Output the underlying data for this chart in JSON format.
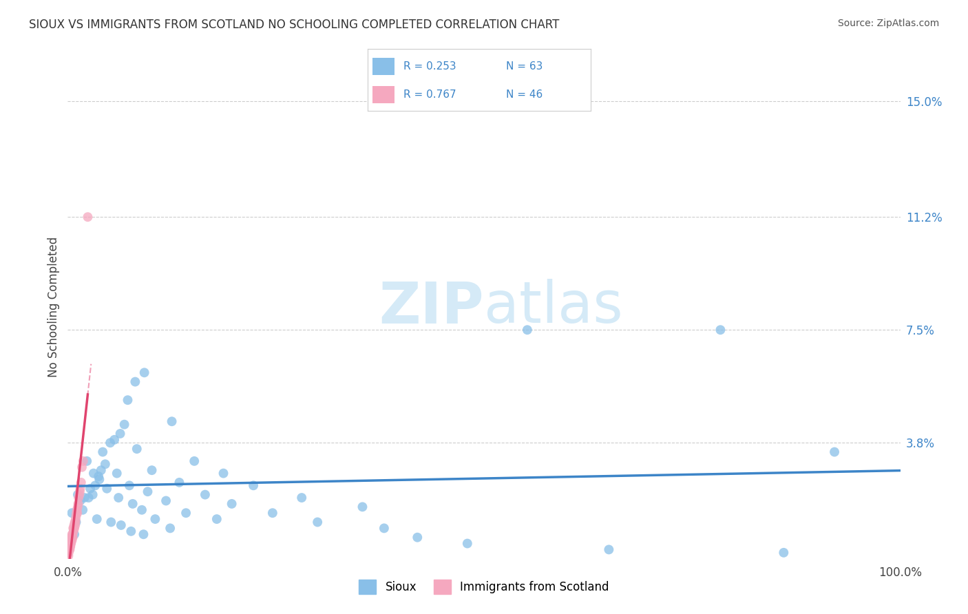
{
  "title": "SIOUX VS IMMIGRANTS FROM SCOTLAND NO SCHOOLING COMPLETED CORRELATION CHART",
  "source": "Source: ZipAtlas.com",
  "ylabel": "No Schooling Completed",
  "xlim": [
    0,
    100
  ],
  "ylim": [
    0,
    16.5
  ],
  "yticks": [
    0,
    3.8,
    7.5,
    11.2,
    15.0
  ],
  "ytick_labels": [
    "",
    "3.8%",
    "7.5%",
    "11.2%",
    "15.0%"
  ],
  "xtick_labels": [
    "0.0%",
    "100.0%"
  ],
  "legend_r1": "R = 0.253",
  "legend_n1": "N = 63",
  "legend_r2": "R = 0.767",
  "legend_n2": "N = 46",
  "blue_color": "#89bfe8",
  "pink_color": "#f5a8bf",
  "blue_line_color": "#3d85c8",
  "pink_line_color": "#e0446e",
  "pink_dash_color": "#f0a0b8",
  "watermark_color": "#d5eaf7",
  "background_color": "#ffffff",
  "grid_color": "#cccccc",
  "sioux_x": [
    0.5,
    0.8,
    1.0,
    1.2,
    1.5,
    1.8,
    2.0,
    2.3,
    2.5,
    2.7,
    3.0,
    3.1,
    3.3,
    3.5,
    3.7,
    3.8,
    4.0,
    4.2,
    4.5,
    4.7,
    5.1,
    5.2,
    5.6,
    5.9,
    6.1,
    6.3,
    6.4,
    6.8,
    7.2,
    7.4,
    7.6,
    7.8,
    8.1,
    8.3,
    8.9,
    9.1,
    9.2,
    9.6,
    10.1,
    10.5,
    11.8,
    12.3,
    12.5,
    13.4,
    14.2,
    15.2,
    16.5,
    17.9,
    18.7,
    19.7,
    22.3,
    24.6,
    28.1,
    30.0,
    35.4,
    38.0,
    42.0,
    48.0,
    55.2,
    65.0,
    78.4,
    86.0,
    92.1
  ],
  "sioux_y": [
    1.5,
    0.8,
    1.2,
    2.1,
    1.9,
    1.6,
    2.0,
    3.2,
    2.0,
    2.3,
    2.1,
    2.8,
    2.4,
    1.3,
    2.7,
    2.6,
    2.9,
    3.5,
    3.1,
    2.3,
    3.8,
    1.2,
    3.9,
    2.8,
    2.0,
    4.1,
    1.1,
    4.4,
    5.2,
    2.4,
    0.9,
    1.8,
    5.8,
    3.6,
    1.6,
    0.8,
    6.1,
    2.2,
    2.9,
    1.3,
    1.9,
    1.0,
    4.5,
    2.5,
    1.5,
    3.2,
    2.1,
    1.3,
    2.8,
    1.8,
    2.4,
    1.5,
    2.0,
    1.2,
    1.7,
    1.0,
    0.7,
    0.5,
    7.5,
    0.3,
    7.5,
    0.2,
    3.5
  ],
  "scotland_x": [
    0.05,
    0.08,
    0.1,
    0.12,
    0.15,
    0.18,
    0.2,
    0.22,
    0.25,
    0.28,
    0.3,
    0.32,
    0.35,
    0.38,
    0.4,
    0.42,
    0.45,
    0.48,
    0.5,
    0.52,
    0.55,
    0.58,
    0.6,
    0.65,
    0.7,
    0.72,
    0.75,
    0.8,
    0.85,
    0.9,
    0.92,
    0.95,
    1.0,
    1.05,
    1.1,
    1.15,
    1.2,
    1.25,
    1.3,
    1.4,
    1.45,
    1.5,
    1.6,
    1.7,
    1.85,
    2.4
  ],
  "scotland_y": [
    0.2,
    0.1,
    0.3,
    0.2,
    0.3,
    0.4,
    0.3,
    0.5,
    0.3,
    0.4,
    0.5,
    0.4,
    0.5,
    0.6,
    0.5,
    0.7,
    0.6,
    0.7,
    0.6,
    0.8,
    0.7,
    0.8,
    0.7,
    1.0,
    0.9,
    1.0,
    1.1,
    1.0,
    1.2,
    1.1,
    1.2,
    1.3,
    1.4,
    1.5,
    1.6,
    1.5,
    1.7,
    1.8,
    2.0,
    2.1,
    2.2,
    2.3,
    2.5,
    3.0,
    3.2,
    11.2
  ]
}
